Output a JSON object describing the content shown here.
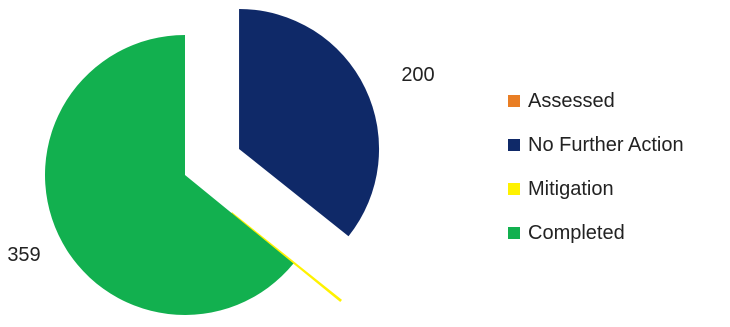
{
  "chart_data": {
    "type": "pie",
    "categories": [
      "Assessed",
      "No Further Action",
      "Mitigation",
      "Completed"
    ],
    "values": [
      0,
      200,
      1,
      359
    ],
    "colors": [
      "#E97E24",
      "#0F2968",
      "#FFF200",
      "#12B04F"
    ],
    "value_labels": [
      "",
      "200",
      "",
      "359"
    ],
    "legend_position": "right",
    "exploded": true
  }
}
